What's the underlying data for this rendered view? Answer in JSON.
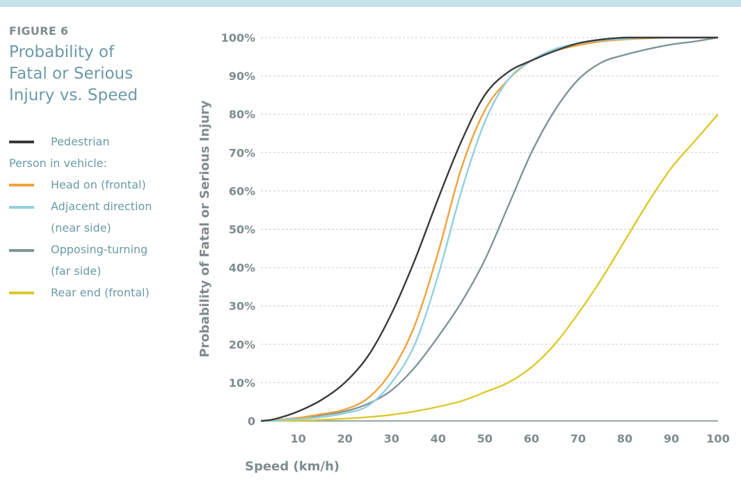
{
  "figure": {
    "label": "FIGURE 6",
    "title_lines": [
      "Probability of",
      "Fatal or Serious",
      "Injury vs. Speed"
    ]
  },
  "legend": {
    "pedestrian": "Pedestrian",
    "group_label": "Person in vehicle:",
    "head_on": "Head on (frontal)",
    "adjacent_1": "Adjacent direction",
    "adjacent_2": "(near side)",
    "opposing_1": "Opposing-turning",
    "opposing_2": "(far side)",
    "rear_end": "Rear end (frontal)"
  },
  "colors": {
    "pedestrian": "#3a3a3a",
    "head_on": "#f0a23c",
    "adjacent": "#90cfe0",
    "opposing": "#7f9596",
    "rear_end": "#dcc92a",
    "grid": "#c7cdce",
    "axis_text": "#7f8c8d",
    "title_text": "#6b9aa6",
    "top_band": "#c5e3ea"
  },
  "chart_data": {
    "type": "line",
    "title": "Probability of Fatal or Serious Injury vs. Speed",
    "xlabel": "Speed (km/h)",
    "ylabel": "Probability of Fatal or Serious Injury",
    "xlim": [
      2,
      100
    ],
    "ylim": [
      0,
      100
    ],
    "x_ticks": [
      "10",
      "20",
      "30",
      "40",
      "50",
      "60",
      "70",
      "80",
      "90",
      "100"
    ],
    "y_ticks": [
      "0",
      "10%",
      "20%",
      "30%",
      "40%",
      "50%",
      "60%",
      "70%",
      "80%",
      "90%",
      "100%"
    ],
    "grid": true,
    "x": [
      2,
      5,
      10,
      15,
      20,
      25,
      30,
      35,
      40,
      45,
      50,
      55,
      60,
      65,
      70,
      75,
      80,
      85,
      90,
      95,
      100
    ],
    "series": [
      {
        "name": "Pedestrian",
        "key": "pedestrian",
        "values": [
          0,
          0.5,
          2.5,
          5.5,
          10,
          17,
          28,
          42,
          58,
          73,
          85,
          91,
          94,
          96.5,
          98.5,
          99.5,
          100,
          100,
          100,
          100,
          100
        ]
      },
      {
        "name": "Head on (frontal)",
        "key": "head_on",
        "values": [
          0,
          0.2,
          0.8,
          1.8,
          3,
          6,
          13,
          25,
          44,
          66,
          81,
          89,
          94,
          96.5,
          98,
          99,
          99.5,
          99.8,
          100,
          100,
          100
        ]
      },
      {
        "name": "Adjacent direction (near side)",
        "key": "adjacent",
        "values": [
          0,
          0.1,
          0.5,
          1,
          2,
          4,
          10,
          20,
          38,
          60,
          78,
          89,
          94,
          97,
          98.5,
          99.3,
          99.7,
          100,
          100,
          100,
          100
        ]
      },
      {
        "name": "Opposing-turning (far side)",
        "key": "opposing",
        "values": [
          0,
          0.2,
          0.8,
          1.5,
          2.5,
          4.5,
          8,
          14,
          22,
          31,
          42,
          56,
          70,
          81,
          89,
          93.5,
          95.5,
          97,
          98.2,
          99,
          100
        ]
      },
      {
        "name": "Rear end (frontal)",
        "key": "rear_end",
        "values": [
          0,
          0,
          0.1,
          0.3,
          0.6,
          1,
          1.6,
          2.5,
          3.7,
          5.2,
          7.5,
          10,
          14,
          20,
          28,
          37,
          47,
          57,
          66,
          73,
          80
        ]
      }
    ]
  }
}
